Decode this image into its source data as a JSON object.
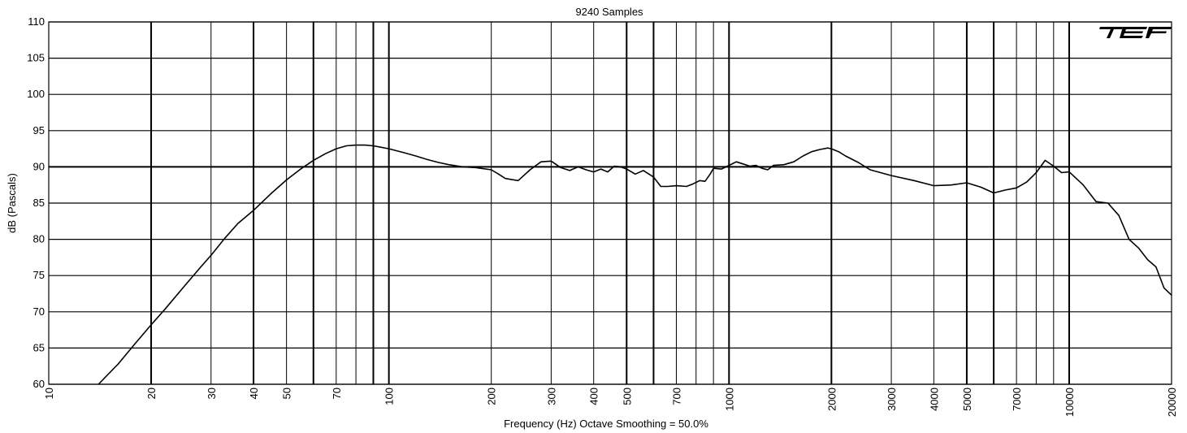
{
  "chart_data": {
    "type": "line",
    "title": "9240 Samples",
    "xlabel": "Frequency (Hz) Octave Smoothing = 50.0%",
    "ylabel": "dB (Pascals)",
    "x_scale": "log",
    "xlim": [
      10,
      20000
    ],
    "ylim": [
      60,
      110
    ],
    "grid": true,
    "logo_text": "TEF",
    "line_color": "#000000",
    "x_ticks": [
      10,
      20,
      30,
      40,
      50,
      70,
      100,
      200,
      300,
      400,
      500,
      700,
      1000,
      2000,
      3000,
      4000,
      5000,
      7000,
      10000,
      20000
    ],
    "x_tick_labels": [
      "10",
      "20",
      "30",
      "40",
      "50",
      "70",
      "100",
      "200",
      "300",
      "400",
      "500",
      "700",
      "1000",
      "2000",
      "3000",
      "4000",
      "5000",
      "7000",
      "10000",
      "20000"
    ],
    "x_gridlines": [
      10,
      20,
      30,
      40,
      50,
      60,
      70,
      80,
      90,
      100,
      200,
      300,
      400,
      500,
      600,
      700,
      800,
      900,
      1000,
      2000,
      3000,
      4000,
      5000,
      6000,
      7000,
      8000,
      9000,
      10000,
      20000
    ],
    "x_major_gridlines": [
      20,
      40,
      60,
      90,
      100,
      500,
      600,
      1000,
      2000,
      5000,
      6000,
      10000
    ],
    "y_ticks": [
      60,
      65,
      70,
      75,
      80,
      85,
      90,
      95,
      100,
      105,
      110
    ],
    "y_tick_labels": [
      "60",
      "65",
      "70",
      "75",
      "80",
      "85",
      "90",
      "95",
      "100",
      "105",
      "110"
    ],
    "series": [
      {
        "x": [
          14,
          16,
          18,
          20,
          22,
          25,
          28,
          30,
          33,
          36,
          40,
          45,
          50,
          55,
          60,
          65,
          70,
          75,
          80,
          85,
          90,
          95,
          100,
          110,
          120,
          130,
          140,
          150,
          165,
          180,
          200,
          210,
          220,
          240,
          260,
          280,
          300,
          320,
          340,
          360,
          380,
          400,
          420,
          440,
          460,
          480,
          500,
          530,
          560,
          600,
          630,
          660,
          700,
          750,
          780,
          820,
          850,
          880,
          900,
          950,
          1000,
          1050,
          1100,
          1150,
          1200,
          1250,
          1300,
          1350,
          1450,
          1550,
          1650,
          1750,
          1850,
          1950,
          2000,
          2100,
          2200,
          2400,
          2600,
          3000,
          3500,
          4000,
          4500,
          5000,
          5500,
          6000,
          6500,
          7000,
          7500,
          8000,
          8500,
          9000,
          9500,
          10000,
          11000,
          12000,
          13000,
          14000,
          15000,
          16000,
          17000,
          18000,
          19000,
          20000
        ],
        "y": [
          60.0,
          62.8,
          65.7,
          68.2,
          70.4,
          73.5,
          76.2,
          77.8,
          80.2,
          82.2,
          84.0,
          86.3,
          88.2,
          89.7,
          90.9,
          91.8,
          92.5,
          92.9,
          93.0,
          93.0,
          92.9,
          92.7,
          92.5,
          92.0,
          91.5,
          91.0,
          90.6,
          90.3,
          90.0,
          89.9,
          89.6,
          89.0,
          88.4,
          88.1,
          89.6,
          90.7,
          90.8,
          89.9,
          89.5,
          90.0,
          89.6,
          89.3,
          89.7,
          89.3,
          90.1,
          90.0,
          89.7,
          89.0,
          89.5,
          88.6,
          87.3,
          87.3,
          87.4,
          87.3,
          87.6,
          88.1,
          88.0,
          89.0,
          89.8,
          89.7,
          90.2,
          90.7,
          90.4,
          90.1,
          90.2,
          89.8,
          89.6,
          90.2,
          90.3,
          90.7,
          91.5,
          92.1,
          92.4,
          92.6,
          92.5,
          92.1,
          91.5,
          90.6,
          89.6,
          88.8,
          88.1,
          87.4,
          87.5,
          87.8,
          87.2,
          86.4,
          86.8,
          87.1,
          87.9,
          89.2,
          90.9,
          90.1,
          89.2,
          89.3,
          87.5,
          85.2,
          85.0,
          83.3,
          80.0,
          78.8,
          77.2,
          76.2,
          73.3,
          72.3
        ]
      }
    ]
  }
}
